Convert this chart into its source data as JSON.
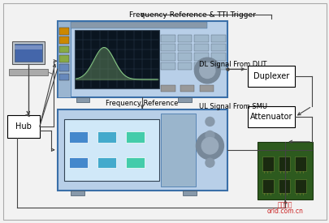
{
  "labels": {
    "freq_ref_tti": "Frequency Reference & TTI Trigger",
    "dl_signal": "DL Signal From DUT",
    "freq_ref": "Frequency Reference",
    "ul_signal": "UL Signal From SMU",
    "hub": "Hub",
    "duplexer": "Duplexer",
    "attenuator": "Attenuator"
  },
  "watermark1": "工程世界",
  "watermark2": "orld.com.cn",
  "fig_bg": "#f2f2f2",
  "border_color": "#999999",
  "line_color": "#444444",
  "box_fill": "#ffffff",
  "inst_border": "#3a6fa8",
  "inst_body": "#b8cfe8",
  "inst_dark": "#7a9abf",
  "inst_screen_bg": "#0a1520",
  "inst_screen_trace": "#88cc88",
  "inst_panel_bg": "#c0d4e8",
  "pcb_fill": "#2d5a1e",
  "pcb_edge": "#1a3510",
  "comp_color": "#888888"
}
